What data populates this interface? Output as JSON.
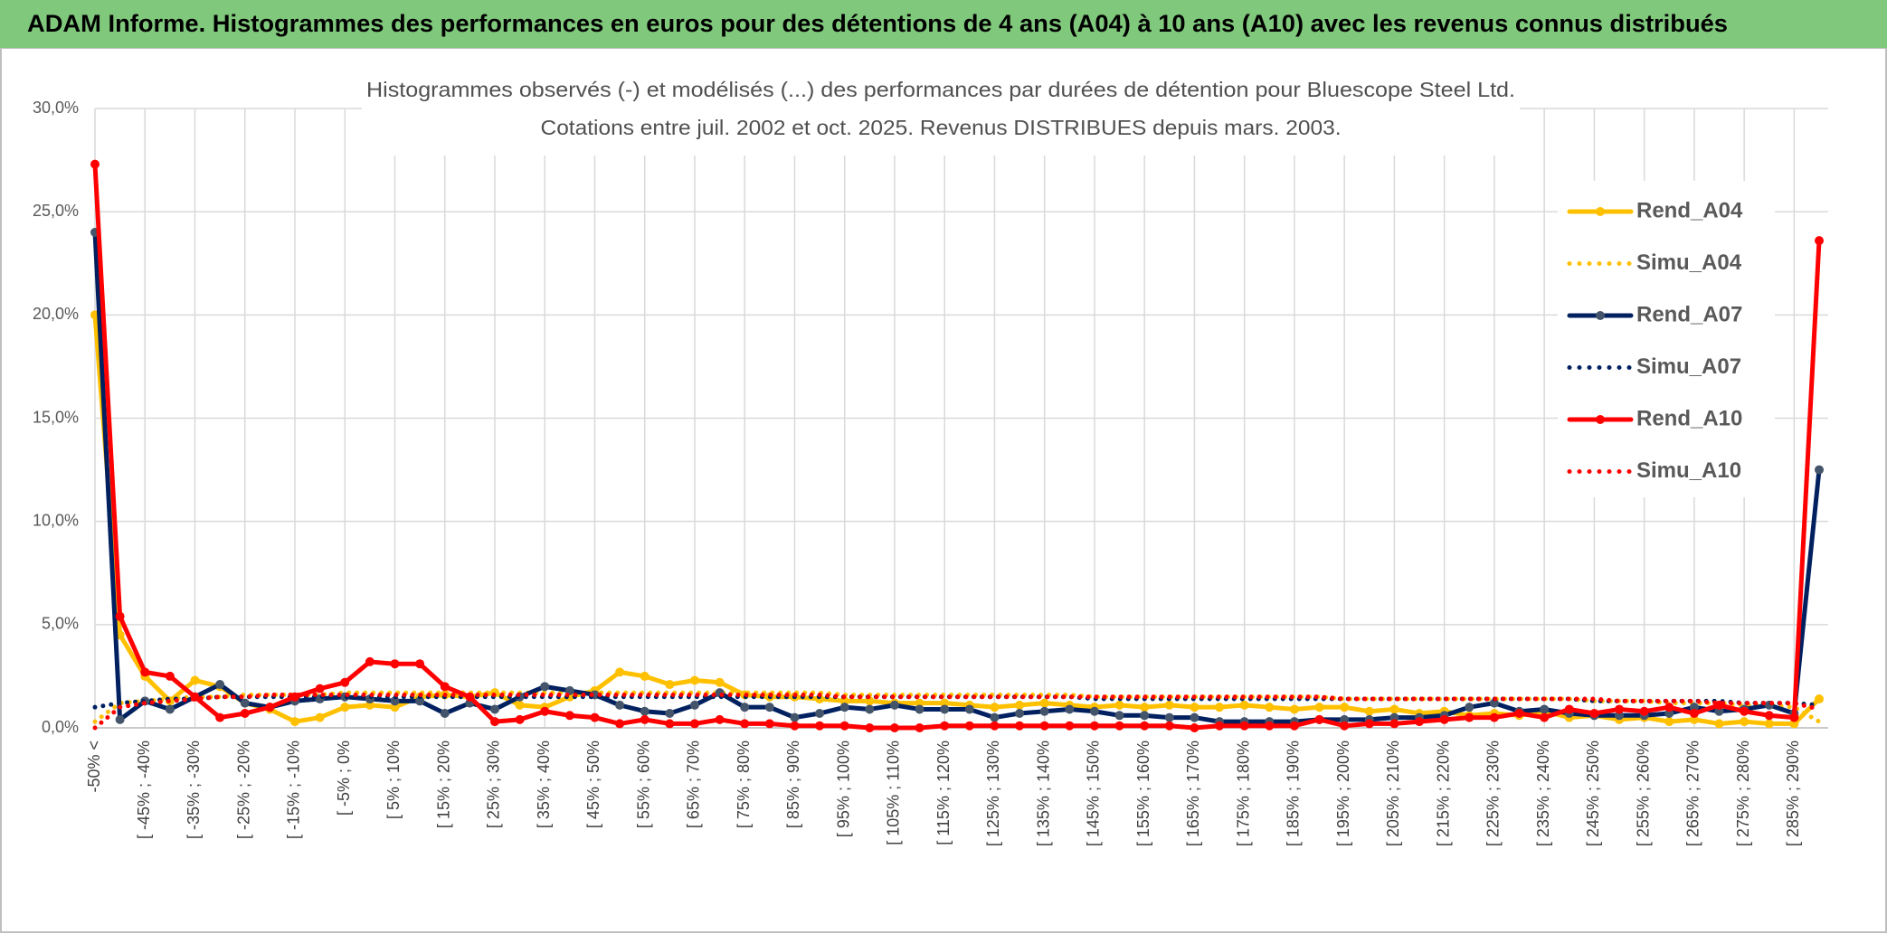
{
  "header": {
    "title": "ADAM Informe. Histogrammes des performances en euros pour des détentions de 4 ans (A04) à 10 ans (A10) avec les revenus connus distribués"
  },
  "chart_data": {
    "type": "line",
    "title": "Histogrammes observés (-) et modélisés (...) des performances par durées de détention pour Bluescope Steel Ltd.",
    "subtitle": "Cotations entre juil. 2002 et oct. 2025. Revenus DISTRIBUES depuis mars. 2003.",
    "categories": [
      "-50% <",
      null,
      "[ -45% ; -40%",
      null,
      "[ -35% ; -30%",
      null,
      "[ -25% ; -20%",
      null,
      "[ -15% ; -10%",
      null,
      "[ -5% ; 0%",
      null,
      "[ 5% ; 10%",
      null,
      "[ 15% ; 20%",
      null,
      "[ 25% ; 30%",
      null,
      "[ 35% ; 40%",
      null,
      "[ 45% ; 50%",
      null,
      "[ 55% ; 60%",
      null,
      "[ 65% ; 70%",
      null,
      "[ 75% ; 80%",
      null,
      "[ 85% ; 90%",
      null,
      "[ 95% ; 100%",
      null,
      "[ 105% ; 110%",
      null,
      "[ 115% ; 120%",
      null,
      "[ 125% ; 130%",
      null,
      "[ 135% ; 140%",
      null,
      "[ 145% ; 150%",
      null,
      "[ 155% ; 160%",
      null,
      "[ 165% ; 170%",
      null,
      "[ 175% ; 180%",
      null,
      "[ 185% ; 190%",
      null,
      "[ 195% ; 200%",
      null,
      "[ 205% ; 210%",
      null,
      "[ 215% ; 220%",
      null,
      "[ 225% ; 230%",
      null,
      "[ 235% ; 240%",
      null,
      "[ 245% ; 250%",
      null,
      "[ 255% ; 260%",
      null,
      "[ 265% ; 270%",
      null,
      "[ 275% ; 280%",
      null,
      "[ 285% ; 290%",
      null
    ],
    "series": [
      {
        "name": "Rend_A04",
        "color": "#FFC000",
        "style": "solid",
        "values": [
          20.0,
          4.5,
          2.5,
          1.3,
          2.3,
          2.0,
          1.2,
          0.9,
          0.3,
          0.5,
          1.0,
          1.1,
          1.0,
          1.5,
          1.6,
          1.5,
          1.7,
          1.1,
          1.0,
          1.5,
          1.8,
          2.7,
          2.5,
          2.1,
          2.3,
          2.2,
          1.6,
          1.5,
          1.5,
          1.4,
          1.3,
          1.3,
          1.2,
          1.2,
          1.2,
          1.1,
          1.0,
          1.1,
          1.2,
          1.1,
          1.0,
          1.1,
          1.0,
          1.1,
          1.0,
          1.0,
          1.1,
          1.0,
          0.9,
          1.0,
          1.0,
          0.8,
          0.9,
          0.7,
          0.8,
          0.6,
          0.7,
          0.6,
          0.8,
          0.5,
          0.6,
          0.4,
          0.5,
          0.3,
          0.4,
          0.2,
          0.3,
          0.2,
          0.2,
          1.4
        ]
      },
      {
        "name": "Simu_A04",
        "color": "#FFC000",
        "style": "dotted",
        "values": [
          0.3,
          1.2,
          1.3,
          1.4,
          1.5,
          1.5,
          1.6,
          1.6,
          1.6,
          1.6,
          1.7,
          1.7,
          1.7,
          1.7,
          1.7,
          1.7,
          1.7,
          1.7,
          1.7,
          1.7,
          1.7,
          1.7,
          1.7,
          1.7,
          1.7,
          1.7,
          1.7,
          1.7,
          1.7,
          1.7,
          1.6,
          1.6,
          1.6,
          1.6,
          1.6,
          1.6,
          1.6,
          1.6,
          1.6,
          1.6,
          1.5,
          1.5,
          1.5,
          1.5,
          1.5,
          1.5,
          1.5,
          1.5,
          1.5,
          1.5,
          1.4,
          1.4,
          1.4,
          1.4,
          1.4,
          1.4,
          1.4,
          1.4,
          1.4,
          1.4,
          1.3,
          1.3,
          1.3,
          1.2,
          1.2,
          1.2,
          1.1,
          1.1,
          1.0,
          0.3
        ]
      },
      {
        "name": "Rend_A07",
        "color": "#002060",
        "style": "solid",
        "values": [
          24.0,
          0.4,
          1.3,
          0.9,
          1.5,
          2.1,
          1.2,
          1.0,
          1.3,
          1.4,
          1.5,
          1.4,
          1.3,
          1.3,
          0.7,
          1.2,
          0.9,
          1.5,
          2.0,
          1.8,
          1.6,
          1.1,
          0.8,
          0.7,
          1.1,
          1.7,
          1.0,
          1.0,
          0.5,
          0.7,
          1.0,
          0.9,
          1.1,
          0.9,
          0.9,
          0.9,
          0.5,
          0.7,
          0.8,
          0.9,
          0.8,
          0.6,
          0.6,
          0.5,
          0.5,
          0.3,
          0.3,
          0.3,
          0.3,
          0.4,
          0.4,
          0.4,
          0.5,
          0.5,
          0.6,
          1.0,
          1.2,
          0.8,
          0.9,
          0.7,
          0.6,
          0.6,
          0.6,
          0.7,
          1.0,
          0.8,
          0.9,
          1.1,
          0.7,
          12.5
        ]
      },
      {
        "name": "Simu_A07",
        "color": "#002060",
        "style": "dotted",
        "values": [
          1.0,
          1.2,
          1.3,
          1.4,
          1.4,
          1.5,
          1.5,
          1.5,
          1.5,
          1.5,
          1.5,
          1.5,
          1.5,
          1.5,
          1.5,
          1.5,
          1.5,
          1.5,
          1.5,
          1.5,
          1.5,
          1.5,
          1.5,
          1.5,
          1.5,
          1.5,
          1.5,
          1.5,
          1.5,
          1.5,
          1.5,
          1.5,
          1.5,
          1.5,
          1.5,
          1.5,
          1.5,
          1.5,
          1.5,
          1.5,
          1.4,
          1.4,
          1.4,
          1.4,
          1.4,
          1.4,
          1.4,
          1.4,
          1.4,
          1.4,
          1.4,
          1.4,
          1.4,
          1.4,
          1.4,
          1.4,
          1.4,
          1.4,
          1.4,
          1.4,
          1.3,
          1.3,
          1.3,
          1.3,
          1.3,
          1.3,
          1.2,
          1.2,
          1.2,
          1.1
        ]
      },
      {
        "name": "Rend_A10",
        "color": "#FF0000",
        "style": "solid",
        "values": [
          27.3,
          5.4,
          2.7,
          2.5,
          1.5,
          0.5,
          0.7,
          1.0,
          1.5,
          1.9,
          2.2,
          3.2,
          3.1,
          3.1,
          2.0,
          1.5,
          0.3,
          0.4,
          0.8,
          0.6,
          0.5,
          0.2,
          0.4,
          0.2,
          0.2,
          0.4,
          0.2,
          0.2,
          0.1,
          0.1,
          0.1,
          0.0,
          0.0,
          0.0,
          0.1,
          0.1,
          0.1,
          0.1,
          0.1,
          0.1,
          0.1,
          0.1,
          0.1,
          0.1,
          0.0,
          0.1,
          0.1,
          0.1,
          0.1,
          0.4,
          0.1,
          0.2,
          0.2,
          0.3,
          0.4,
          0.5,
          0.5,
          0.7,
          0.5,
          0.9,
          0.7,
          0.9,
          0.8,
          1.0,
          0.7,
          1.1,
          0.8,
          0.6,
          0.5,
          23.6
        ]
      },
      {
        "name": "Simu_A10",
        "color": "#FF0000",
        "style": "dotted",
        "values": [
          0.0,
          1.0,
          1.2,
          1.3,
          1.4,
          1.5,
          1.5,
          1.6,
          1.6,
          1.6,
          1.6,
          1.6,
          1.6,
          1.6,
          1.6,
          1.6,
          1.6,
          1.6,
          1.6,
          1.6,
          1.6,
          1.6,
          1.6,
          1.6,
          1.6,
          1.6,
          1.6,
          1.6,
          1.6,
          1.6,
          1.5,
          1.5,
          1.5,
          1.5,
          1.5,
          1.5,
          1.5,
          1.5,
          1.5,
          1.5,
          1.5,
          1.5,
          1.5,
          1.5,
          1.5,
          1.5,
          1.5,
          1.5,
          1.5,
          1.5,
          1.4,
          1.4,
          1.4,
          1.4,
          1.4,
          1.4,
          1.4,
          1.4,
          1.4,
          1.4,
          1.4,
          1.3,
          1.3,
          1.3,
          1.3,
          1.2,
          1.2,
          1.2,
          1.2,
          0.9
        ]
      }
    ],
    "ylim": [
      0,
      30
    ],
    "yticks": [
      {
        "value": 0,
        "label": "0,0%"
      },
      {
        "value": 5,
        "label": "5,0%"
      },
      {
        "value": 10,
        "label": "10,0%"
      },
      {
        "value": 15,
        "label": "15,0%"
      },
      {
        "value": 20,
        "label": "20,0%"
      },
      {
        "value": 25,
        "label": "25,0%"
      },
      {
        "value": 30,
        "label": "30,0%"
      }
    ],
    "grid": true,
    "legend": "right"
  }
}
